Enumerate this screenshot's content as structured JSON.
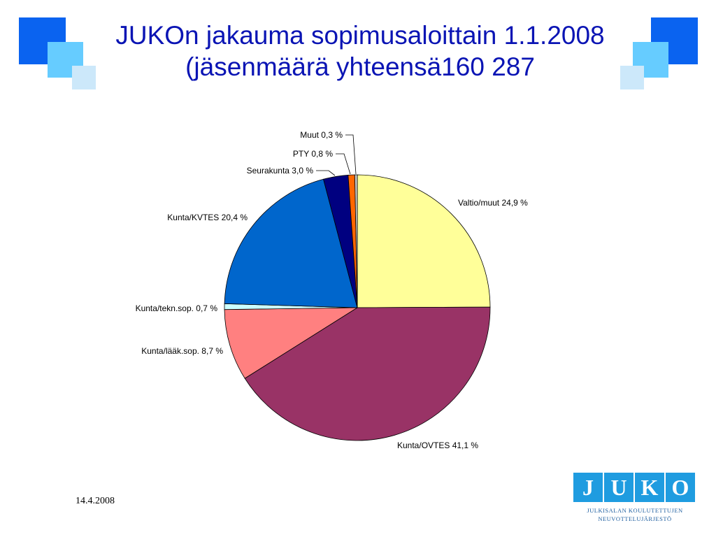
{
  "slide": {
    "title_line1": "JUKOn jakauma sopimusaloittain 1.1.2008",
    "title_line2": "(jäsenmäärä yhteensä160 287",
    "date": "14.4.2008",
    "title_color": "#0a14b4"
  },
  "logo": {
    "letters": [
      "J",
      "U",
      "K",
      "O"
    ],
    "subtitle_line1": "JULKISALAN KOULUTETTUJEN",
    "subtitle_line2": "NEUVOTTELUJÄRJESTÖ"
  },
  "chart_data": {
    "type": "pie",
    "start_angle_deg": 0,
    "direction": "clockwise",
    "slices": [
      {
        "label": "Valtio/muut 24,9 %",
        "value": 24.9,
        "color": "#ffff99"
      },
      {
        "label": "Kunta/OVTES 41,1 %",
        "value": 41.1,
        "color": "#993366"
      },
      {
        "label": "Kunta/lääk.sop. 8,7 %",
        "value": 8.7,
        "color": "#ff8080"
      },
      {
        "label": "Kunta/tekn.sop. 0,7 %",
        "value": 0.7,
        "color": "#ccffff"
      },
      {
        "label": "Kunta/KVTES 20,4 %",
        "value": 20.4,
        "color": "#0066cc"
      },
      {
        "label": "Seurakunta 3,0 %",
        "value": 3.0,
        "color": "#000080"
      },
      {
        "label": "PTY 0,8 %",
        "value": 0.8,
        "color": "#ff6600"
      },
      {
        "label": "Muut 0,3 %",
        "value": 0.3,
        "color": "#cccccc"
      }
    ]
  }
}
